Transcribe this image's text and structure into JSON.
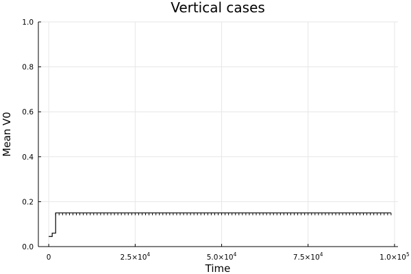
{
  "chart_data": {
    "type": "line",
    "title": "Vertical cases",
    "xlabel": "Time",
    "ylabel": "Mean V0",
    "xlim": [
      -3000,
      101000
    ],
    "ylim": [
      0,
      1
    ],
    "grid": true,
    "legend": "none",
    "x_ticks": [
      {
        "value": 0,
        "mantissa": "0",
        "exponent": ""
      },
      {
        "value": 25000,
        "mantissa": "2.5×10",
        "exponent": "4"
      },
      {
        "value": 50000,
        "mantissa": "5.0×10",
        "exponent": "4"
      },
      {
        "value": 75000,
        "mantissa": "7.5×10",
        "exponent": "4"
      },
      {
        "value": 100000,
        "mantissa": "1.0×10",
        "exponent": "5"
      }
    ],
    "y_ticks": [
      {
        "value": 0.0,
        "label": "0.0"
      },
      {
        "value": 0.2,
        "label": "0.2"
      },
      {
        "value": 0.4,
        "label": "0.4"
      },
      {
        "value": 0.6,
        "label": "0.6"
      },
      {
        "value": 0.8,
        "label": "0.8"
      },
      {
        "value": 1.0,
        "label": "1.0"
      }
    ],
    "series": [
      {
        "color": "#000000",
        "step": true,
        "x": [
          0,
          1000,
          2000,
          99000
        ],
        "y": [
          0.045,
          0.06,
          0.15,
          0.15
        ],
        "marker_start": 2000,
        "marker_end": 99000,
        "marker_interval": 1000
      }
    ]
  }
}
